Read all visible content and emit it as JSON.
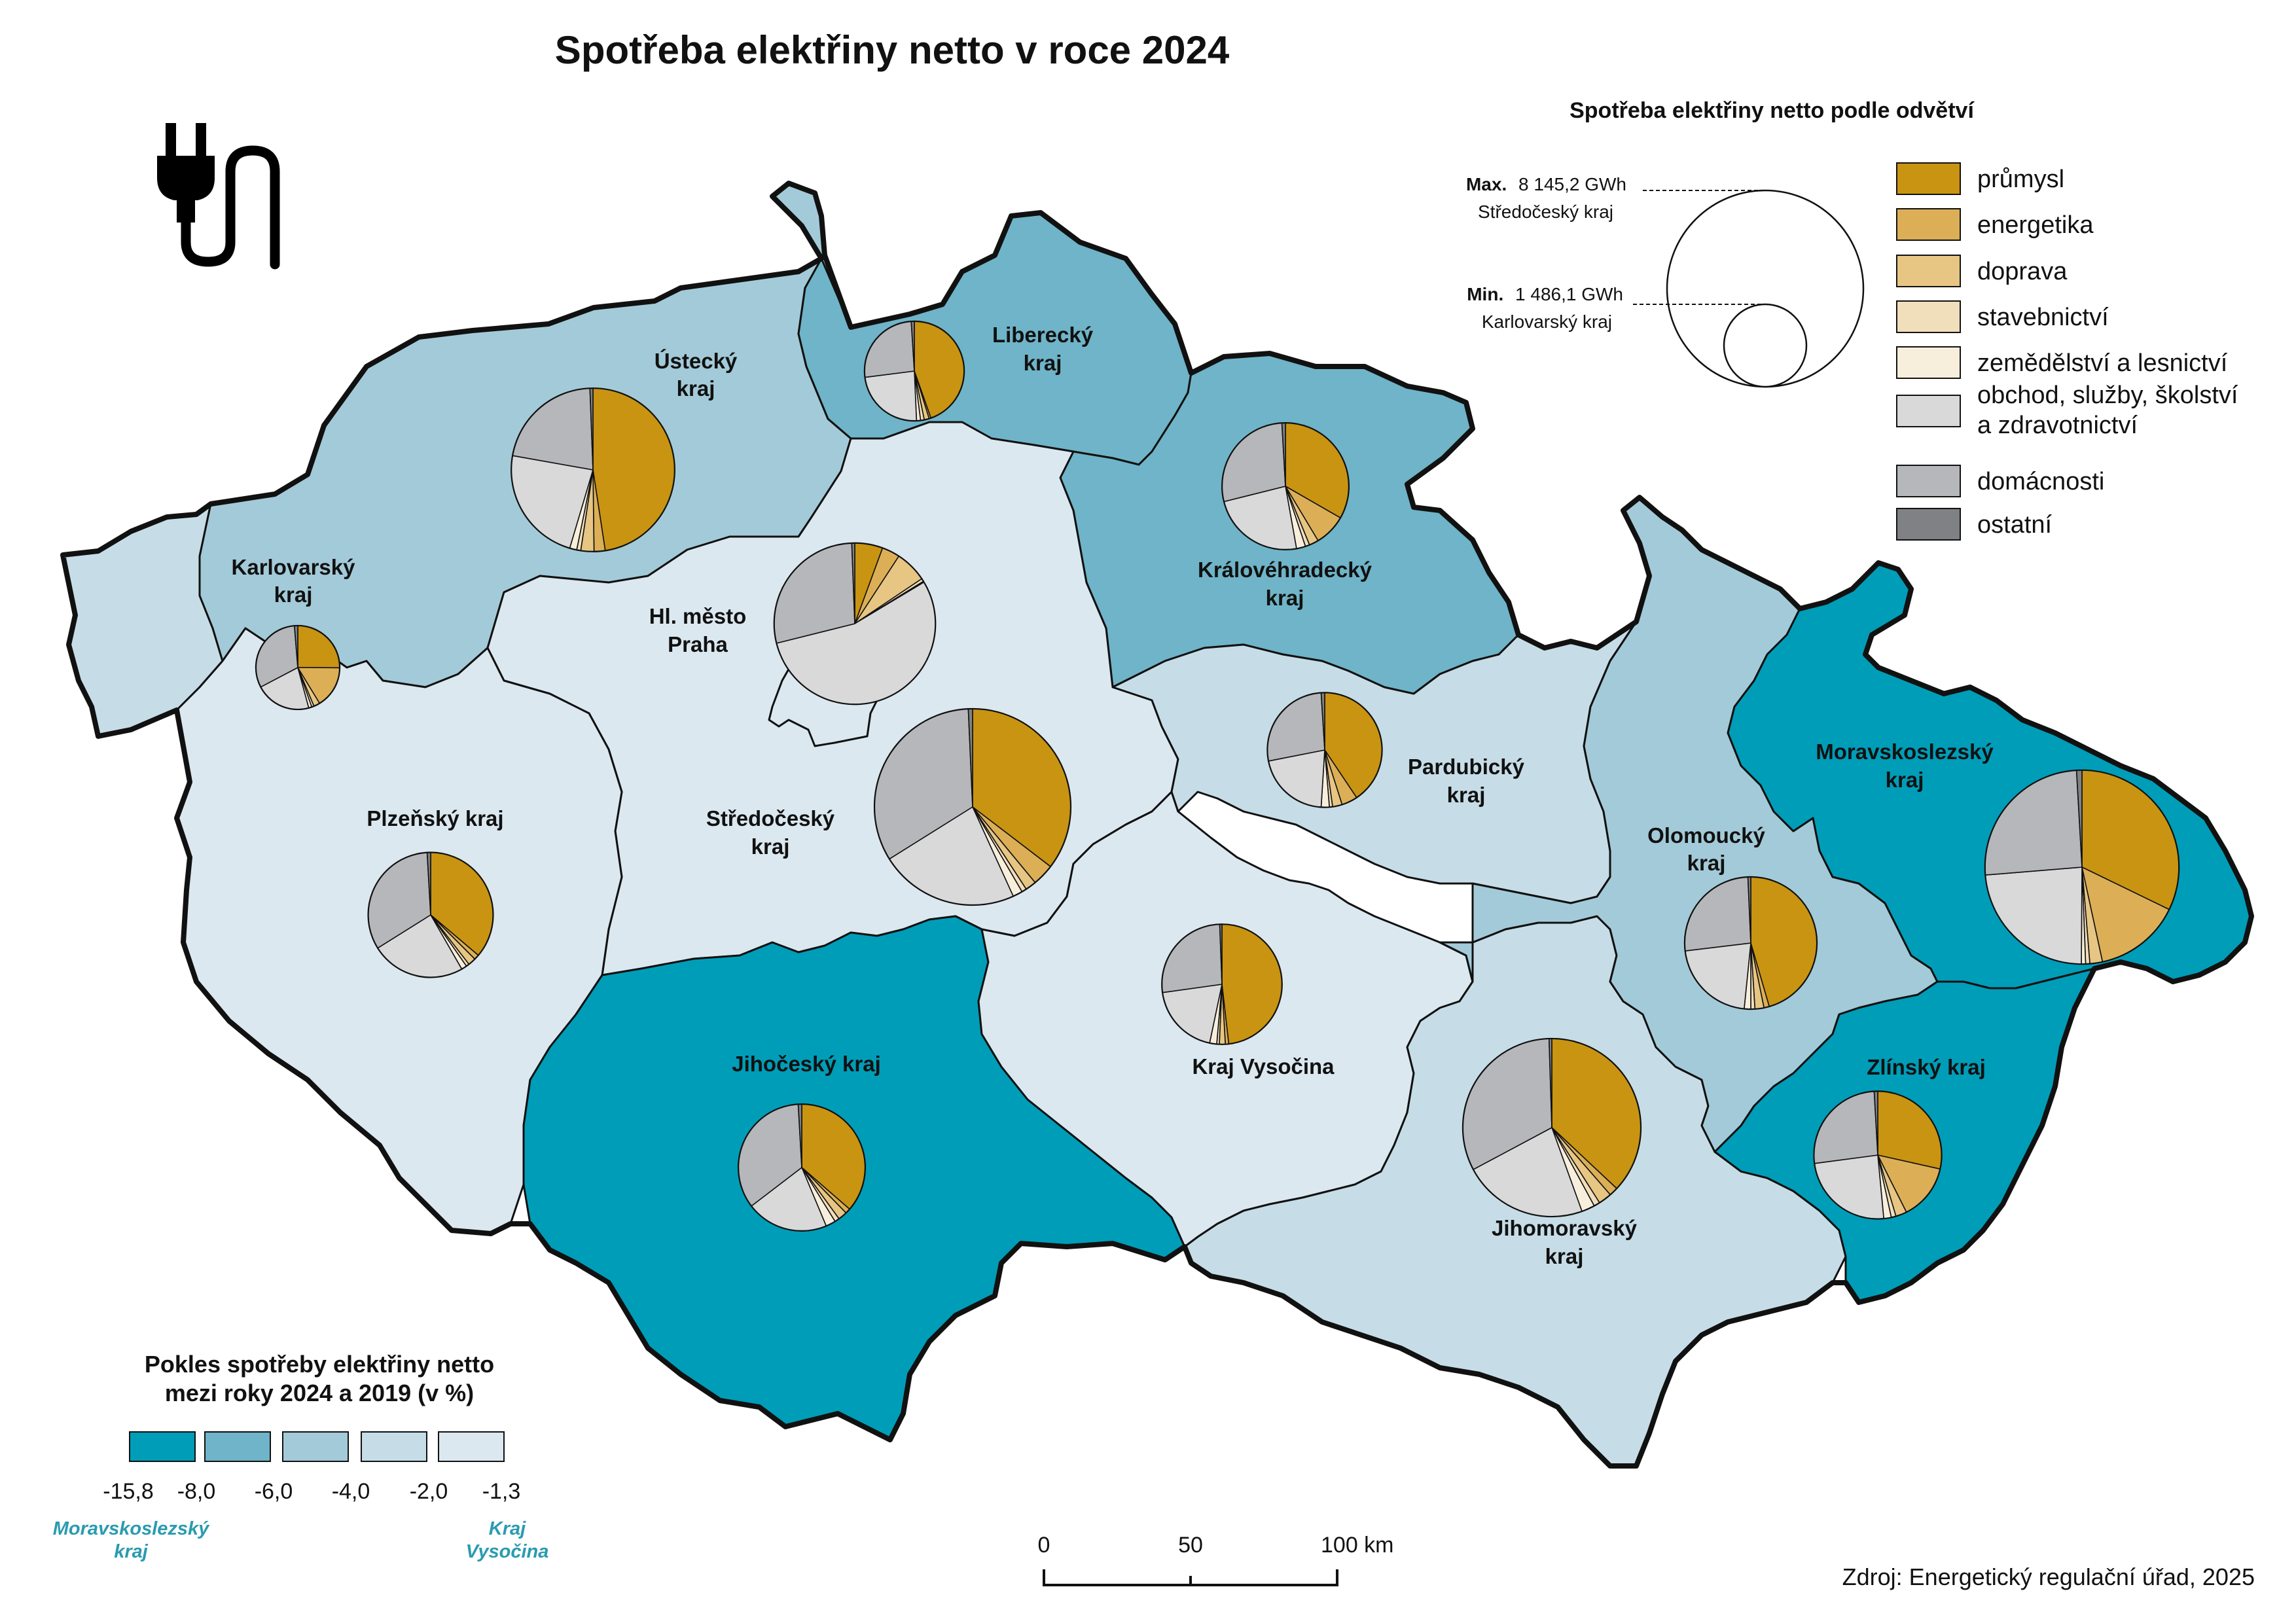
{
  "title": "Spotřeba elektřiny netto v roce 2024",
  "sector_legend": {
    "title": "Spotřeba elektřiny netto podle odvětví",
    "items": [
      {
        "key": "prumysl",
        "label": "průmysl",
        "color": "#c99412"
      },
      {
        "key": "energetika",
        "label": "energetika",
        "color": "#dcaf57"
      },
      {
        "key": "doprava",
        "label": "doprava",
        "color": "#e7c583"
      },
      {
        "key": "stavebnictvi",
        "label": "stavebnictví",
        "color": "#f1debb"
      },
      {
        "key": "zemedelstvi",
        "label": "zemědělství a lesnictví",
        "color": "#f8eedc"
      },
      {
        "key": "obchod",
        "label": [
          "obchod, služby, školství",
          "a zdravotnictví"
        ],
        "color": "#d9d9da"
      },
      {
        "key": "domacnosti",
        "label": "domácnosti",
        "color": "#b6b7ba"
      },
      {
        "key": "ostatni",
        "label": "ostatní",
        "color": "#7f8185"
      }
    ]
  },
  "size_legend": {
    "max": {
      "prefix": "Max.",
      "value": "8 145,2 GWh",
      "region": "Středočeský kraj"
    },
    "min": {
      "prefix": "Min.",
      "value": "1 486,1 GWh",
      "region": "Karlovarský kraj"
    }
  },
  "choropleth_legend": {
    "title": [
      "Pokles spotřeby elektřiny netto",
      "mezi roky 2024 a 2019 (v %)"
    ],
    "classes": [
      {
        "color": "#009db8"
      },
      {
        "color": "#6fb4c8"
      },
      {
        "color": "#a3cad8"
      },
      {
        "color": "#c6dde7"
      },
      {
        "color": "#dbe8f0"
      }
    ],
    "breaks": [
      "-15,8",
      "-8,0",
      "-6,0",
      "-4,0",
      "-2,0",
      "-1,3"
    ],
    "extremes": {
      "min": [
        "Moravskoslezský",
        "kraj"
      ],
      "max": [
        "Kraj",
        "Vysočina"
      ]
    }
  },
  "regions": [
    {
      "id": "karlovarsky",
      "name": [
        "Karlovarský",
        "kraj"
      ],
      "class": 3,
      "pie": {
        "total_gwh": 1486.1,
        "shares": {
          "prumysl": 25.1,
          "energetika": 16.2,
          "doprava": 2.4,
          "stavebnictvi": 0.9,
          "zemedelstvi": 1.2,
          "obchod": 21.5,
          "domacnosti": 31.4,
          "ostatni": 1.3
        }
      }
    },
    {
      "id": "ustecky",
      "name": [
        "Ústecký",
        "kraj"
      ],
      "class": 2,
      "pie": {
        "total_gwh": 5640,
        "shares": {
          "prumysl": 47.6,
          "energetika": 2.2,
          "doprava": 2.6,
          "stavebnictvi": 0.8,
          "zemedelstvi": 1.4,
          "obchod": 23.2,
          "domacnosti": 21.6,
          "ostatni": 0.6
        }
      }
    },
    {
      "id": "liberecky",
      "name": [
        "Liberecký",
        "kraj"
      ],
      "class": 1,
      "pie": {
        "total_gwh": 2100,
        "shares": {
          "prumysl": 44.6,
          "energetika": 0.6,
          "doprava": 1.6,
          "stavebnictvi": 1.2,
          "zemedelstvi": 1.3,
          "obchod": 23.7,
          "domacnosti": 26.0,
          "ostatni": 1.0
        }
      }
    },
    {
      "id": "kralovehradecky",
      "name": [
        "Královéhradecký",
        "kraj"
      ],
      "class": 1,
      "pie": {
        "total_gwh": 3400,
        "shares": {
          "prumysl": 33.3,
          "energetika": 8.1,
          "doprava": 2.4,
          "stavebnictvi": 1.1,
          "zemedelstvi": 2.3,
          "obchod": 23.9,
          "domacnosti": 28.0,
          "ostatni": 0.9
        }
      }
    },
    {
      "id": "praha",
      "name": [
        "Hl. město",
        "Praha"
      ],
      "class": 4,
      "pie": {
        "total_gwh": 5500,
        "shares": {
          "prumysl": 5.6,
          "energetika": 3.6,
          "doprava": 6.4,
          "stavebnictvi": 0.6,
          "zemedelstvi": 0.2,
          "obchod": 54.7,
          "domacnosti": 28.3,
          "ostatni": 0.6
        }
      }
    },
    {
      "id": "stredocesky",
      "name": [
        "Středočeský",
        "kraj"
      ],
      "class": 4,
      "pie": {
        "total_gwh": 8145.2,
        "shares": {
          "prumysl": 35.4,
          "energetika": 3.6,
          "doprava": 1.8,
          "stavebnictvi": 0.8,
          "zemedelstvi": 1.6,
          "obchod": 22.9,
          "domacnosti": 33.2,
          "ostatni": 0.7
        }
      }
    },
    {
      "id": "plzensky",
      "name": [
        "Plzeňský kraj"
      ],
      "class": 4,
      "pie": {
        "total_gwh": 3300,
        "shares": {
          "prumysl": 36.2,
          "energetika": 1.3,
          "doprava": 2.0,
          "stavebnictvi": 0.8,
          "zemedelstvi": 1.4,
          "obchod": 24.4,
          "domacnosti": 33.0,
          "ostatni": 0.9
        }
      }
    },
    {
      "id": "pardubicky",
      "name": [
        "Pardubický",
        "kraj"
      ],
      "class": 3,
      "pie": {
        "total_gwh": 2780,
        "shares": {
          "prumysl": 40.6,
          "energetika": 4.5,
          "doprava": 2.7,
          "stavebnictvi": 0.9,
          "zemedelstvi": 2.3,
          "obchod": 20.9,
          "domacnosti": 27.1,
          "ostatni": 1.0
        }
      }
    },
    {
      "id": "vysocina",
      "name": [
        "Kraj Vysočina"
      ],
      "class": 4,
      "pie": {
        "total_gwh": 3050,
        "shares": {
          "prumysl": 48.2,
          "energetika": 0.9,
          "doprava": 1.6,
          "stavebnictvi": 0.7,
          "zemedelstvi": 1.9,
          "obchod": 19.5,
          "domacnosti": 26.6,
          "ostatni": 0.6
        }
      }
    },
    {
      "id": "jihocesky",
      "name": [
        "Jihočeský kraj"
      ],
      "class": 0,
      "pie": {
        "total_gwh": 3400,
        "shares": {
          "prumysl": 36.4,
          "energetika": 1.3,
          "doprava": 2.3,
          "stavebnictvi": 1.2,
          "zemedelstvi": 2.5,
          "obchod": 20.9,
          "domacnosti": 34.5,
          "ostatni": 0.9
        }
      }
    },
    {
      "id": "jihomoravsky",
      "name": [
        "Jihomoravský",
        "kraj"
      ],
      "class": 3,
      "pie": {
        "total_gwh": 6700,
        "shares": {
          "prumysl": 37.0,
          "energetika": 1.6,
          "doprava": 2.4,
          "stavebnictvi": 1.1,
          "zemedelstvi": 2.4,
          "obchod": 22.7,
          "domacnosti": 32.3,
          "ostatni": 0.5
        }
      }
    },
    {
      "id": "olomoucky",
      "name": [
        "Olomoucký",
        "kraj"
      ],
      "class": 2,
      "pie": {
        "total_gwh": 3700,
        "shares": {
          "prumysl": 45.5,
          "energetika": 1.3,
          "doprava": 2.2,
          "stavebnictvi": 1.0,
          "zemedelstvi": 1.6,
          "obchod": 21.5,
          "domacnosti": 26.2,
          "ostatni": 0.7
        }
      }
    },
    {
      "id": "moravskoslezsky",
      "name": [
        "Moravskoslezský",
        "kraj"
      ],
      "class": 0,
      "pie": {
        "total_gwh": 7950,
        "shares": {
          "prumysl": 32.2,
          "energetika": 14.4,
          "doprava": 2.1,
          "stavebnictvi": 0.7,
          "zemedelstvi": 0.7,
          "obchod": 23.6,
          "domacnosti": 25.4,
          "ostatni": 0.9
        }
      }
    },
    {
      "id": "zlinsky",
      "name": [
        "Zlínský kraj"
      ],
      "class": 0,
      "pie": {
        "total_gwh": 3450,
        "shares": {
          "prumysl": 28.5,
          "energetika": 14.1,
          "doprava": 2.8,
          "stavebnictvi": 1.2,
          "zemedelstvi": 1.9,
          "obchod": 24.4,
          "domacnosti": 26.2,
          "ostatni": 0.9
        }
      }
    }
  ],
  "scale_bar": {
    "ticks": [
      "0",
      "50",
      "100 km"
    ]
  },
  "source": "Zdroj: Energetický regulační úřad, 2025",
  "icon": "electric-plug-icon"
}
